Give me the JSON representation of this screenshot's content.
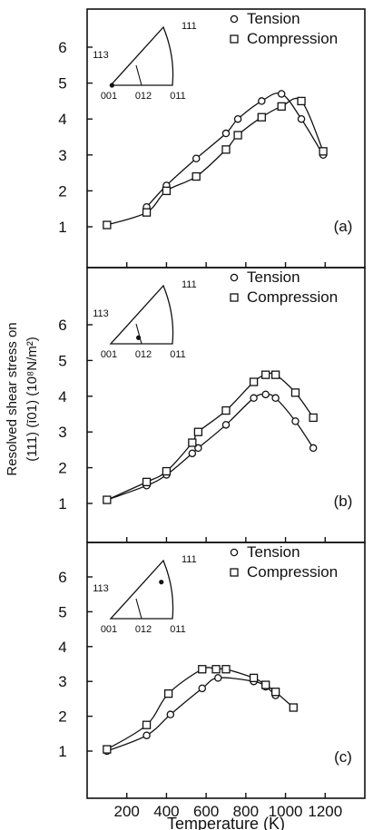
{
  "chart_data": [
    {
      "type": "scatter",
      "panel_label": "(a)",
      "legend": [
        "Tension",
        "Compression"
      ],
      "legend_placement": "top-right",
      "inset": {
        "labels": [
          "111",
          "113",
          "001",
          "012",
          "011"
        ],
        "orientation": [
          0.02,
          0.0
        ]
      },
      "xlim": [
        0,
        1400
      ],
      "ylim": [
        0,
        7
      ],
      "series": [
        {
          "name": "Tension",
          "marker": "circle",
          "x": [
            300,
            400,
            550,
            700,
            760,
            880,
            980,
            1080,
            1190
          ],
          "y": [
            1.55,
            2.15,
            2.9,
            3.6,
            4.0,
            4.5,
            4.7,
            4.0,
            3.0
          ]
        },
        {
          "name": "Compression",
          "marker": "square",
          "x": [
            100,
            300,
            400,
            550,
            700,
            760,
            880,
            980,
            1080,
            1190
          ],
          "y": [
            1.05,
            1.4,
            2.0,
            2.4,
            3.15,
            3.55,
            4.05,
            4.35,
            4.5,
            3.1
          ]
        }
      ]
    },
    {
      "type": "scatter",
      "panel_label": "(b)",
      "legend": [
        "Tension",
        "Compression"
      ],
      "legend_placement": "top-right",
      "inset": {
        "labels": [
          "111",
          "113",
          "001",
          "012",
          "011"
        ],
        "orientation": [
          0.45,
          0.1
        ]
      },
      "xlim": [
        0,
        1400
      ],
      "ylim": [
        0,
        7
      ],
      "series": [
        {
          "name": "Tension",
          "marker": "circle",
          "x": [
            100,
            300,
            400,
            530,
            560,
            700,
            840,
            900,
            950,
            1050,
            1140
          ],
          "y": [
            1.1,
            1.5,
            1.8,
            2.4,
            2.55,
            3.2,
            3.95,
            4.05,
            3.95,
            3.3,
            2.55
          ]
        },
        {
          "name": "Compression",
          "marker": "square",
          "x": [
            100,
            300,
            400,
            530,
            560,
            700,
            840,
            900,
            950,
            1050,
            1140
          ],
          "y": [
            1.1,
            1.6,
            1.9,
            2.7,
            3.0,
            3.6,
            4.4,
            4.6,
            4.6,
            4.1,
            3.4
          ]
        }
      ]
    },
    {
      "type": "scatter",
      "panel_label": "(c)",
      "legend": [
        "Tension",
        "Compression"
      ],
      "legend_placement": "top-right",
      "inset": {
        "labels": [
          "111",
          "113",
          "001",
          "012",
          "011"
        ],
        "orientation": [
          0.82,
          0.6
        ]
      },
      "xlim": [
        0,
        1400
      ],
      "ylim": [
        0,
        7
      ],
      "series": [
        {
          "name": "Tension",
          "marker": "circle",
          "x": [
            100,
            300,
            420,
            580,
            660,
            840,
            900,
            950
          ],
          "y": [
            1.0,
            1.45,
            2.05,
            2.8,
            3.1,
            3.0,
            2.85,
            2.6
          ]
        },
        {
          "name": "Compression",
          "marker": "square",
          "x": [
            100,
            300,
            410,
            580,
            650,
            700,
            840,
            900,
            950,
            1040
          ],
          "y": [
            1.05,
            1.75,
            2.65,
            3.35,
            3.35,
            3.35,
            3.1,
            2.9,
            2.7,
            2.25
          ]
        }
      ]
    }
  ],
  "y_axis_label_line1": "Resolved shear stress on",
  "y_axis_label_line2": "(111) (ī01) (10⁸N/m²)",
  "x_axis_label": "Temperature (K)",
  "x_ticks": [
    200,
    400,
    600,
    800,
    1000,
    1200
  ],
  "y_ticks": [
    1,
    2,
    3,
    4,
    5,
    6
  ],
  "colors": {
    "ink": "#111111",
    "background": "#ffffff"
  }
}
